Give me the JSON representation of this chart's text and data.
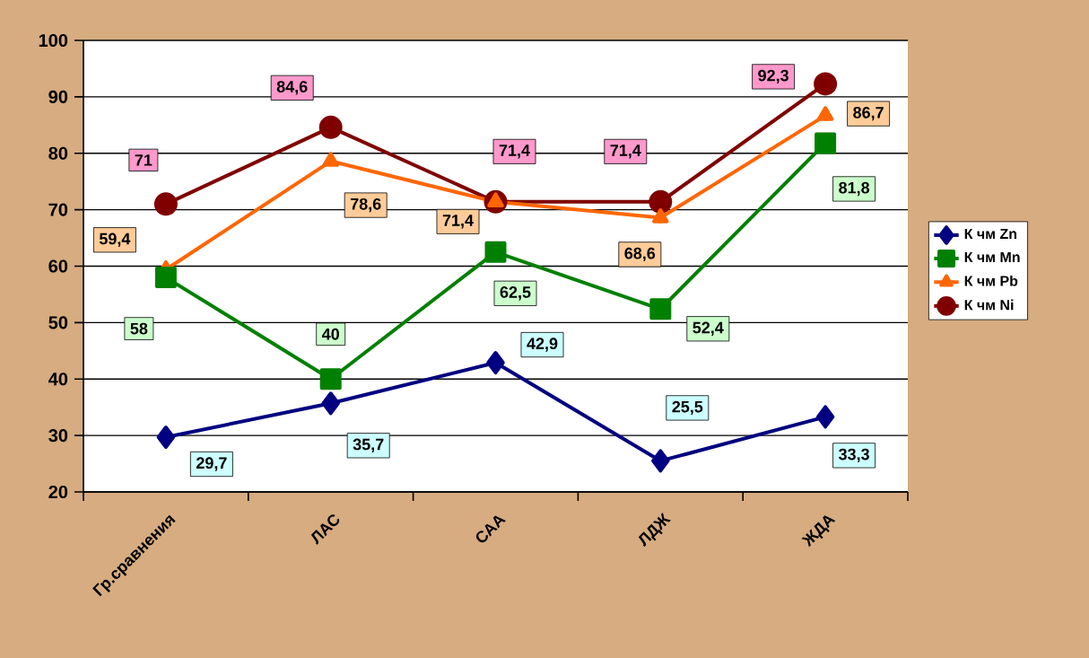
{
  "chart_data": {
    "type": "line",
    "categories": [
      "Гр.сравнения",
      "ЛАС",
      "САА",
      "ЛДЖ",
      "ЖДА"
    ],
    "series": [
      {
        "name": "К чм Zn",
        "color": "#000080",
        "marker": "diamond",
        "values": [
          29.7,
          35.7,
          42.9,
          25.5,
          33.3
        ],
        "value_labels": [
          "29,7",
          "35,7",
          "42,9",
          "25,5",
          "33,3"
        ]
      },
      {
        "name": "К чм Mn",
        "color": "#008000",
        "marker": "square",
        "values": [
          58,
          40,
          62.5,
          52.4,
          81.8
        ],
        "value_labels": [
          "58",
          "40",
          "62,5",
          "52,4",
          "81,8"
        ]
      },
      {
        "name": "К чм Pb",
        "color": "#ff6600",
        "marker": "triangle",
        "values": [
          59.4,
          78.6,
          71.4,
          68.6,
          86.7
        ],
        "value_labels": [
          "59,4",
          "78,6",
          "71,4",
          "68,6",
          "86,7"
        ]
      },
      {
        "name": "К чм Ni",
        "color": "#800000",
        "marker": "circle",
        "values": [
          71,
          84.6,
          71.4,
          71.4,
          92.3
        ],
        "value_labels": [
          "71",
          "84,6",
          "71,4",
          "71,4",
          "92,3"
        ]
      }
    ],
    "ylim": [
      20,
      100
    ],
    "yticks": [
      20,
      30,
      40,
      50,
      60,
      70,
      80,
      90,
      100
    ],
    "grid": "y",
    "legend": "right"
  }
}
